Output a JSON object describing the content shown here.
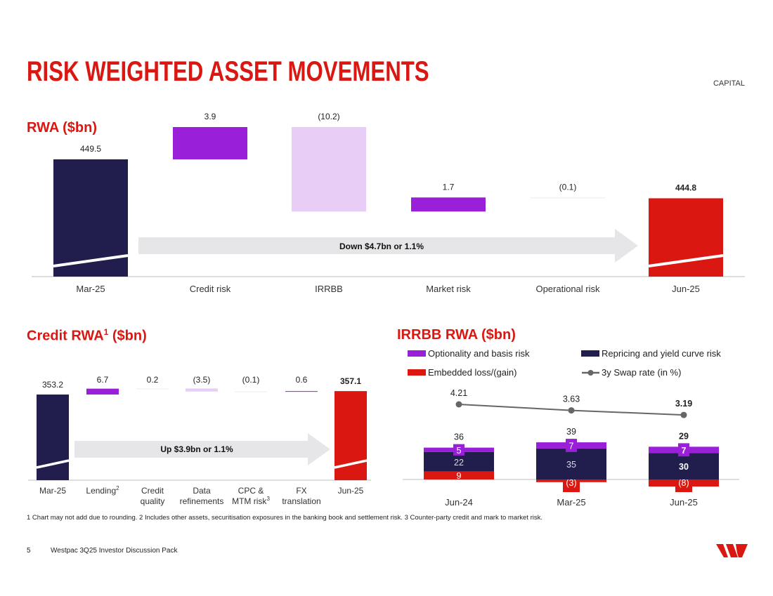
{
  "page": {
    "title": "RISK WEIGHTED ASSET MOVEMENTS",
    "section": "CAPITAL",
    "page_number": "5",
    "doc_title": "Westpac 3Q25 Investor Discussion Pack",
    "footnote": "1 Chart may not add due to rounding. 2 Includes other assets, securitisation exposures in the banking book and settlement risk. 3 Counter-party credit and mark to market risk."
  },
  "colors": {
    "navy": "#211e4d",
    "red": "#da1710",
    "purple": "#9a1fd8",
    "lilac": "#e8cdf6",
    "gray_arrow": "#e6e6e9",
    "swap_line": "#666666"
  },
  "rwa": {
    "heading": "RWA ($bn)",
    "arrow_label": "Down $4.7bn or 1.1%"
  },
  "credit": {
    "heading": "Credit RWA",
    "heading_sup": "1",
    "heading_unit": " ($bn)",
    "arrow_label": "Up $3.9bn or 1.1%"
  },
  "irrbb": {
    "heading": "IRRBB RWA ($bn)",
    "legend": {
      "optionality": "Optionality and basis risk",
      "repricing": "Repricing and yield curve risk",
      "embedded": "Embedded loss/(gain)",
      "swap": "3y Swap rate (in %)"
    }
  },
  "chart_data": [
    {
      "type": "bar",
      "subtype": "waterfall",
      "title": "RWA ($bn)",
      "categories": [
        "Mar-25",
        "Credit risk",
        "IRRBB",
        "Market risk",
        "Operational risk",
        "Jun-25"
      ],
      "values": [
        449.5,
        3.9,
        -10.2,
        1.7,
        -0.1,
        444.8
      ],
      "labels": [
        "449.5",
        "3.9",
        "(10.2)",
        "1.7",
        "(0.1)",
        "444.8"
      ],
      "kinds": [
        "total",
        "delta",
        "delta",
        "delta",
        "delta",
        "total"
      ],
      "annotation": "Down $4.7bn or 1.1%"
    },
    {
      "type": "bar",
      "subtype": "waterfall",
      "title": "Credit RWA ($bn)",
      "categories": [
        "Mar-25",
        "Lending",
        "Credit quality",
        "Data refinements",
        "CPC & MTM risk",
        "FX translation",
        "Jun-25"
      ],
      "category_lines": [
        [
          "Mar-25"
        ],
        [
          "Lending"
        ],
        [
          "Credit",
          "quality"
        ],
        [
          "Data",
          "refinements"
        ],
        [
          "CPC &",
          "MTM risk"
        ],
        [
          "FX",
          "translation"
        ],
        [
          "Jun-25"
        ]
      ],
      "category_sups": [
        "",
        "2",
        "",
        "",
        "3",
        "",
        ""
      ],
      "values": [
        353.2,
        6.7,
        0.2,
        -3.5,
        -0.1,
        0.6,
        357.1
      ],
      "labels": [
        "353.2",
        "6.7",
        "0.2",
        "(3.5)",
        "(0.1)",
        "0.6",
        "357.1"
      ],
      "kinds": [
        "total",
        "delta",
        "delta",
        "delta",
        "delta",
        "delta",
        "total"
      ],
      "annotation": "Up $3.9bn or 1.1%"
    },
    {
      "type": "bar",
      "subtype": "stacked",
      "title": "IRRBB RWA ($bn)",
      "categories": [
        "Jun-24",
        "Mar-25",
        "Jun-25"
      ],
      "series": [
        {
          "name": "Embedded loss/(gain)",
          "values": [
            9,
            -3,
            -8
          ],
          "labels": [
            "9",
            "(3)",
            "(8)"
          ]
        },
        {
          "name": "Repricing and yield curve risk",
          "values": [
            22,
            35,
            30
          ],
          "labels": [
            "22",
            "35",
            "30"
          ]
        },
        {
          "name": "Optionality and basis risk",
          "values": [
            5,
            7,
            7
          ],
          "labels": [
            "5",
            "7",
            "7"
          ]
        }
      ],
      "totals": [
        36,
        39,
        29
      ],
      "total_labels": [
        "36",
        "39",
        "29"
      ],
      "line": {
        "name": "3y Swap rate (in %)",
        "values": [
          4.21,
          3.63,
          3.19
        ],
        "labels": [
          "4.21",
          "3.63",
          "3.19"
        ]
      }
    }
  ]
}
